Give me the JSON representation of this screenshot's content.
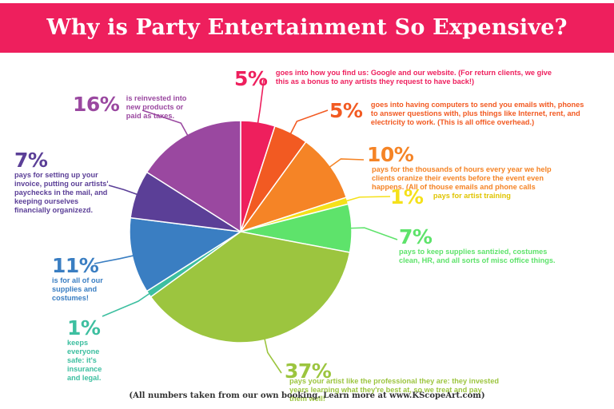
{
  "title": "Why is Party Entertainment So Expensive?",
  "footer": "(All numbers taken from our own booking. Learn more at www.KScopeArt.com)",
  "colors": {
    "banner": "#ee1f5d"
  },
  "chart_data": {
    "type": "pie",
    "title": "Why is Party Entertainment So Expensive?",
    "slices": [
      {
        "value": 5,
        "label": "5%",
        "color": "#ee1f5d",
        "text": "goes into how you find us: Google and our website. (For return clients, we give this as a bonus to any artists they request to have back!)"
      },
      {
        "value": 5,
        "label": "5%",
        "color": "#f25a22",
        "text": "goes into having computers to send you emails with, phones to answer questions with, plus things like Internet, rent, and electricity to work. (This is all office overhead.)"
      },
      {
        "value": 10,
        "label": "10%",
        "color": "#f58426",
        "text": "pays for the thousands of hours every year we help clients oranize their events before the event even happens. (All of thouse emails and phone calls"
      },
      {
        "value": 1,
        "label": "1%",
        "color": "#f5e11a",
        "text": "pays for artist training"
      },
      {
        "value": 7,
        "label": "7%",
        "color": "#5ee36b",
        "text": "pays to keep supplies santizied, costumes clean, HR, and all sorts of misc office things."
      },
      {
        "value": 37,
        "label": "37%",
        "color": "#9cc53f",
        "text": "pays your artist like the professional they are: they invested years learning what they're best at, so we treat and pay them well!"
      },
      {
        "value": 1,
        "label": "1%",
        "color": "#3dbfa0",
        "text": "keeps everyone safe: it's insurance and legal."
      },
      {
        "value": 11,
        "label": "11%",
        "color": "#3a7ec2",
        "text": "is for all of our supplies and costumes!"
      },
      {
        "value": 7,
        "label": "7%",
        "color": "#5b3f97",
        "text": "pays for setting up your invoice, putting our artists' paychecks in the mail, and keeping ourselves financially organizezd."
      },
      {
        "value": 16,
        "label": "16%",
        "color": "#9a48a0",
        "text": "is reinvested into new products or paid as taxes."
      }
    ]
  }
}
